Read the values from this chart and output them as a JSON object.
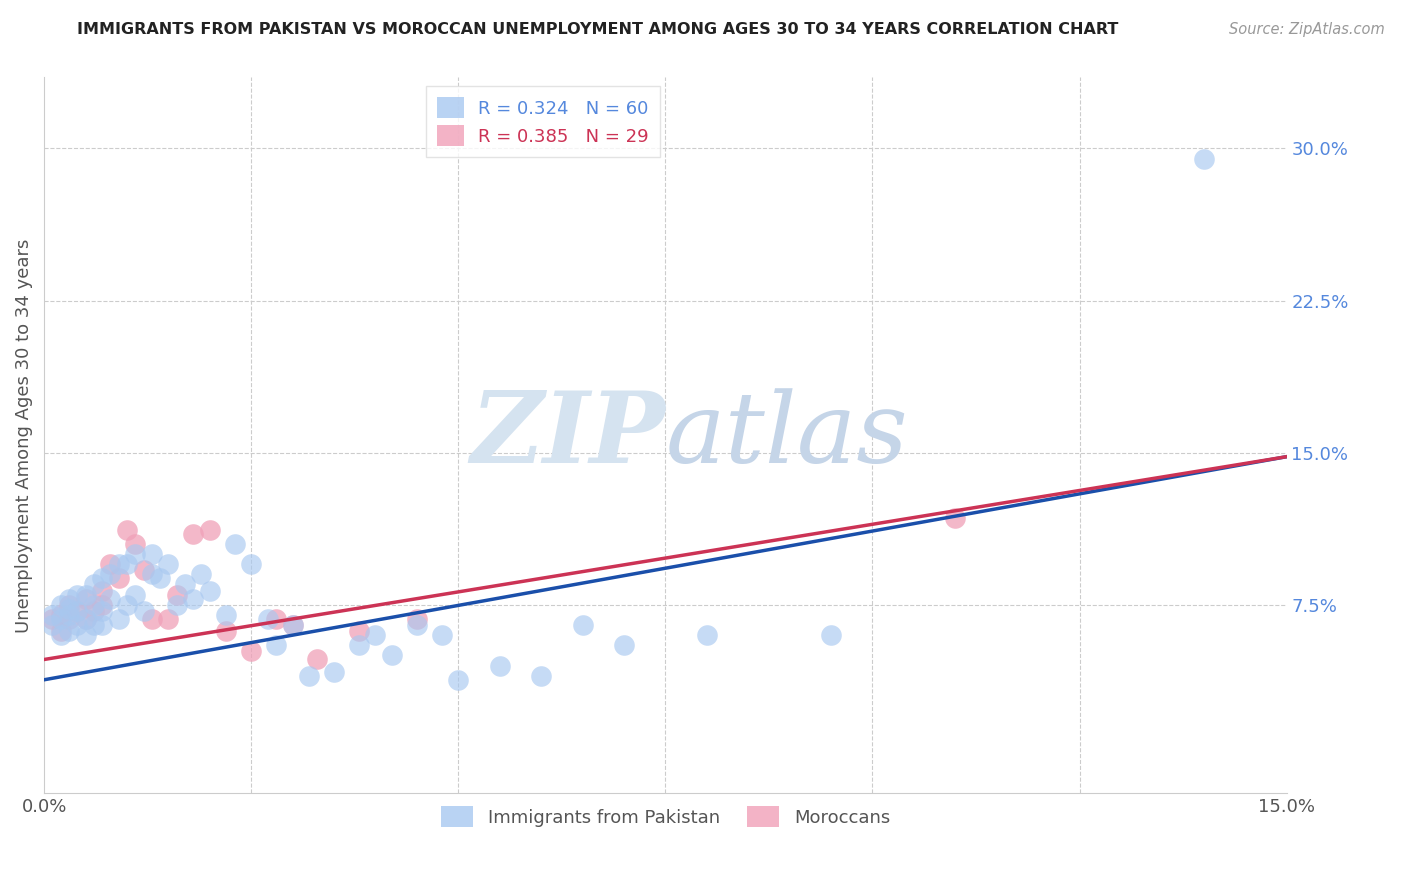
{
  "title": "IMMIGRANTS FROM PAKISTAN VS MOROCCAN UNEMPLOYMENT AMONG AGES 30 TO 34 YEARS CORRELATION CHART",
  "source": "Source: ZipAtlas.com",
  "ylabel": "Unemployment Among Ages 30 to 34 years",
  "xrange": [
    0.0,
    0.15
  ],
  "yrange": [
    -0.018,
    0.335
  ],
  "r_blue": 0.324,
  "n_blue": 60,
  "r_pink": 0.385,
  "n_pink": 29,
  "blue_color": "#A8C8F0",
  "pink_color": "#F0A0B8",
  "line_blue": "#1A4FAA",
  "line_pink": "#CC3355",
  "legend_label_blue": "Immigrants from Pakistan",
  "legend_label_pink": "Moroccans",
  "watermark_zip": "ZIP",
  "watermark_atlas": "atlas",
  "grid_color": "#CCCCCC",
  "ytick_values": [
    0.075,
    0.15,
    0.225,
    0.3
  ],
  "ytick_labels": [
    "7.5%",
    "15.0%",
    "22.5%",
    "30.0%"
  ],
  "right_label_color": "#5588DD",
  "blue_line_start_y": 0.038,
  "blue_line_end_y": 0.148,
  "pink_line_start_y": 0.048,
  "pink_line_end_y": 0.148,
  "pakistan_x": [
    0.001,
    0.001,
    0.002,
    0.002,
    0.002,
    0.003,
    0.003,
    0.003,
    0.003,
    0.004,
    0.004,
    0.004,
    0.005,
    0.005,
    0.005,
    0.006,
    0.006,
    0.006,
    0.007,
    0.007,
    0.007,
    0.008,
    0.008,
    0.009,
    0.009,
    0.01,
    0.01,
    0.011,
    0.011,
    0.012,
    0.013,
    0.013,
    0.014,
    0.015,
    0.016,
    0.017,
    0.018,
    0.019,
    0.02,
    0.022,
    0.023,
    0.025,
    0.027,
    0.028,
    0.03,
    0.032,
    0.035,
    0.038,
    0.04,
    0.042,
    0.045,
    0.048,
    0.05,
    0.055,
    0.06,
    0.065,
    0.07,
    0.08,
    0.095,
    0.14
  ],
  "pakistan_y": [
    0.065,
    0.07,
    0.06,
    0.068,
    0.075,
    0.062,
    0.07,
    0.073,
    0.078,
    0.065,
    0.072,
    0.08,
    0.06,
    0.068,
    0.08,
    0.065,
    0.075,
    0.085,
    0.065,
    0.072,
    0.088,
    0.078,
    0.09,
    0.068,
    0.095,
    0.075,
    0.095,
    0.08,
    0.1,
    0.072,
    0.09,
    0.1,
    0.088,
    0.095,
    0.075,
    0.085,
    0.078,
    0.09,
    0.082,
    0.07,
    0.105,
    0.095,
    0.068,
    0.055,
    0.065,
    0.04,
    0.042,
    0.055,
    0.06,
    0.05,
    0.065,
    0.06,
    0.038,
    0.045,
    0.04,
    0.065,
    0.055,
    0.06,
    0.06,
    0.295
  ],
  "morocco_x": [
    0.001,
    0.002,
    0.002,
    0.003,
    0.003,
    0.004,
    0.005,
    0.005,
    0.006,
    0.007,
    0.007,
    0.008,
    0.009,
    0.01,
    0.011,
    0.012,
    0.013,
    0.015,
    0.016,
    0.018,
    0.02,
    0.022,
    0.025,
    0.028,
    0.03,
    0.033,
    0.038,
    0.045,
    0.11
  ],
  "morocco_y": [
    0.068,
    0.062,
    0.07,
    0.068,
    0.075,
    0.072,
    0.068,
    0.078,
    0.072,
    0.075,
    0.082,
    0.095,
    0.088,
    0.112,
    0.105,
    0.092,
    0.068,
    0.068,
    0.08,
    0.11,
    0.112,
    0.062,
    0.052,
    0.068,
    0.065,
    0.048,
    0.062,
    0.068,
    0.118
  ]
}
